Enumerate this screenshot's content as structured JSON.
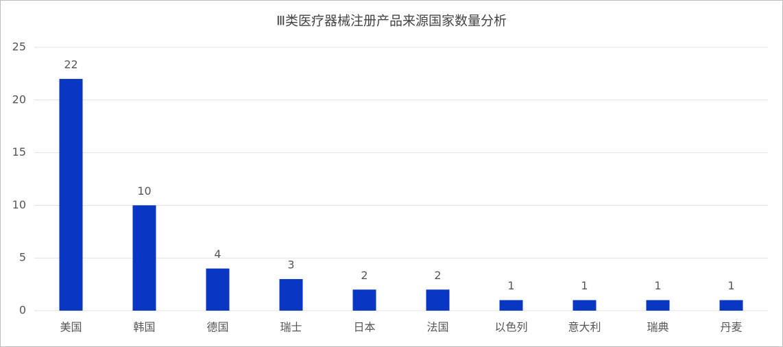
{
  "chart_data": {
    "type": "bar",
    "title": "Ⅲ类医疗器械注册产品来源国家数量分析",
    "categories": [
      "美国",
      "韩国",
      "德国",
      "瑞士",
      "日本",
      "法国",
      "以色列",
      "意大利",
      "瑞典",
      "丹麦"
    ],
    "values": [
      22,
      10,
      4,
      3,
      2,
      2,
      1,
      1,
      1,
      1
    ],
    "color": "#0a37c1",
    "ylim": [
      0,
      25
    ],
    "yticks": [
      0,
      5,
      10,
      15,
      20,
      25
    ],
    "grid": true
  }
}
